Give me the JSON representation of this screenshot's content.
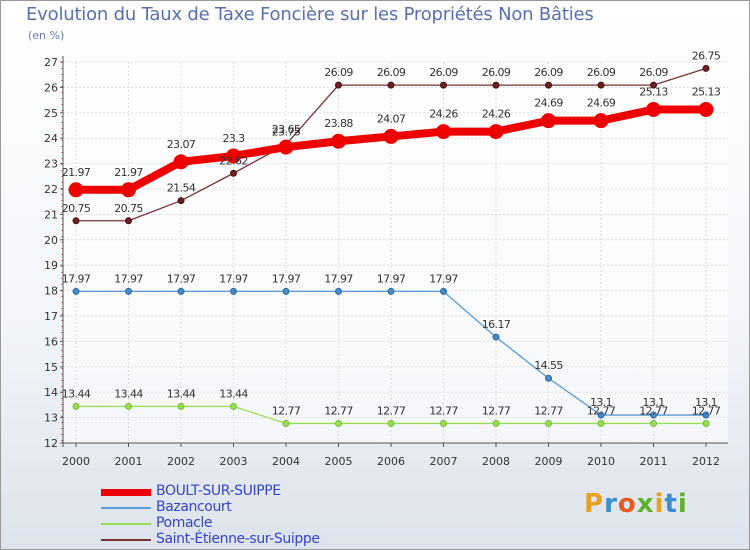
{
  "title": "Evolution du Taux de Taxe Foncière sur les Propriétés Non Bâties",
  "unit_label": "(en %)",
  "logo_letters": [
    "P",
    "r",
    "o",
    "x",
    "i",
    "t",
    "i"
  ],
  "logo_colors": [
    "#e8a020",
    "#3a8fd0",
    "#e85a20",
    "#60b030",
    "#e8a020",
    "#3a8fd0",
    "#60b030"
  ],
  "chart_data": {
    "type": "line",
    "title": "Evolution du Taux de Taxe Foncière sur les Propriétés Non Bâties",
    "ylabel": "(en %)",
    "ylim": [
      12,
      27
    ],
    "yticks": [
      "12",
      "13",
      "14",
      "15",
      "16",
      "17",
      "18",
      "19",
      "20",
      "21",
      "22",
      "23",
      "24",
      "25",
      "26",
      "27"
    ],
    "categories": [
      "2000",
      "2001",
      "2002",
      "2003",
      "2004",
      "2005",
      "2006",
      "2007",
      "2008",
      "2009",
      "2010",
      "2011",
      "2012"
    ],
    "series": [
      {
        "name": "BOULT-SUR-SUIPPE",
        "color": "#ee0000",
        "values": [
          21.97,
          21.97,
          23.07,
          23.3,
          23.65,
          23.88,
          24.07,
          24.26,
          24.26,
          24.69,
          24.69,
          25.13,
          25.13
        ],
        "labels": [
          "21.97",
          "21.97",
          "23.07",
          "23.3",
          "23.65",
          "23.88",
          "24.07",
          "24.26",
          "24.26",
          "24.69",
          "24.69",
          "25.13",
          "25.13"
        ]
      },
      {
        "name": "Bazancourt",
        "color": "#5a9bd5",
        "values": [
          17.97,
          17.97,
          17.97,
          17.97,
          17.97,
          17.97,
          17.97,
          17.97,
          16.17,
          14.55,
          13.1,
          13.1,
          13.1
        ],
        "labels": [
          "17.97",
          "17.97",
          "17.97",
          "17.97",
          "17.97",
          "17.97",
          "17.97",
          "17.97",
          "16.17",
          "14.55",
          "13.1",
          "13.1",
          "13.1"
        ]
      },
      {
        "name": "Pomacle",
        "color": "#99dd55",
        "values": [
          13.44,
          13.44,
          13.44,
          13.44,
          12.77,
          12.77,
          12.77,
          12.77,
          12.77,
          12.77,
          12.77,
          12.77,
          12.77
        ],
        "labels": [
          "13.44",
          "13.44",
          "13.44",
          "13.44",
          "12.77",
          "12.77",
          "12.77",
          "12.77",
          "12.77",
          "12.77",
          "12.77",
          "12.77",
          "12.77"
        ]
      },
      {
        "name": "Saint-Étienne-sur-Suippe",
        "color": "#7a3333",
        "values": [
          20.75,
          20.75,
          21.54,
          22.62,
          23.75,
          26.09,
          26.09,
          26.09,
          26.09,
          26.09,
          26.09,
          26.09,
          26.75
        ],
        "labels": [
          "20.75",
          "20.75",
          "21.54",
          "22.62",
          "23.75",
          "26.09",
          "26.09",
          "26.09",
          "26.09",
          "26.09",
          "26.09",
          "26.09",
          "26.75"
        ]
      }
    ]
  }
}
